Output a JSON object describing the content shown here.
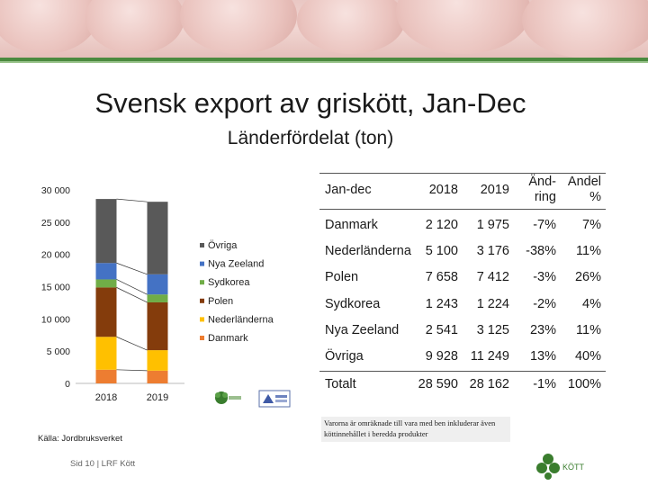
{
  "title": "Svensk export av griskött, Jan-Dec",
  "subtitle": "Länderfördelat (ton)",
  "chart_data": {
    "type": "bar",
    "stacked": true,
    "categories": [
      "2018",
      "2019"
    ],
    "series": [
      {
        "name": "Danmark",
        "values": [
          2120,
          1975
        ],
        "color": "#ed7d31"
      },
      {
        "name": "Nederländerna",
        "values": [
          5100,
          3176
        ],
        "color": "#ffc000"
      },
      {
        "name": "Polen",
        "values": [
          7658,
          7412
        ],
        "color": "#843c0c"
      },
      {
        "name": "Sydkorea",
        "values": [
          1243,
          1224
        ],
        "color": "#70ad47"
      },
      {
        "name": "Nya Zeeland",
        "values": [
          2541,
          3125
        ],
        "color": "#4472c4"
      },
      {
        "name": "Övriga",
        "values": [
          9928,
          11249
        ],
        "color": "#595959"
      }
    ],
    "legend_order": [
      "Övriga",
      "Nya Zeeland",
      "Sydkorea",
      "Polen",
      "Nederländerna",
      "Danmark"
    ],
    "ylim": [
      0,
      30000
    ],
    "yticks": [
      0,
      5000,
      10000,
      15000,
      20000,
      25000,
      30000
    ],
    "ytick_labels": [
      "0",
      "5 000",
      "10 000",
      "15 000",
      "20 000",
      "25 000",
      "30 000"
    ],
    "grid": false,
    "legend_position": "right",
    "series_lines": true
  },
  "table": {
    "headers": [
      "Jan-dec",
      "2018",
      "2019",
      "Änd-\nring",
      "Andel\n%"
    ],
    "rows": [
      [
        "Danmark",
        "2 120",
        "1 975",
        "-7%",
        "7%"
      ],
      [
        "Nederländerna",
        "5 100",
        "3 176",
        "-38%",
        "11%"
      ],
      [
        "Polen",
        "7 658",
        "7 412",
        "-3%",
        "26%"
      ],
      [
        "Sydkorea",
        "1 243",
        "1 224",
        "-2%",
        "4%"
      ],
      [
        "Nya Zeeland",
        "2 541",
        "3 125",
        "23%",
        "11%"
      ],
      [
        "Övriga",
        "9 928",
        "11 249",
        "13%",
        "40%"
      ]
    ],
    "total": [
      "Totalt",
      "28 590",
      "28 162",
      "-1%",
      "100%"
    ]
  },
  "note": "Varorna är omräknade till vara med ben inkluderar även köttinnehållet i beredda produkter",
  "source": "Källa: Jordbruksverket",
  "footer": "Sid 10 | LRF Kött",
  "logo_text": "KÖTT"
}
